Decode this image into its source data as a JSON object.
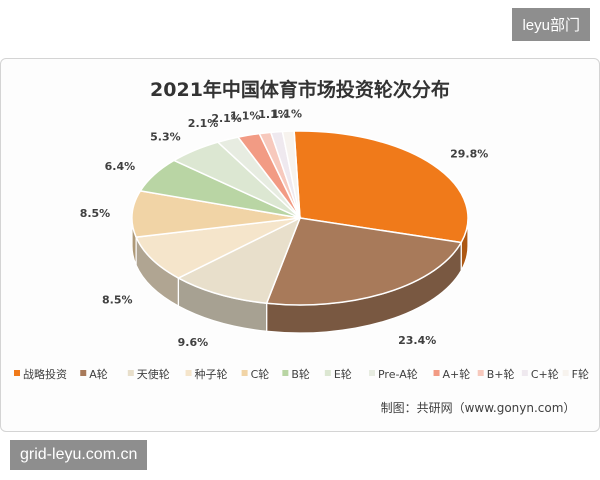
{
  "badge": "leyu部门",
  "watermark": "grid-leyu.com.cn",
  "source": "制图：共研网（www.gonyn.com）",
  "chart_data": {
    "type": "pie",
    "title": "2021年中国体育市场投资轮次分布",
    "slices": [
      {
        "name": "战略投资",
        "value": 29.8,
        "label": "29.8%",
        "color": "#F07A1A"
      },
      {
        "name": "A轮",
        "value": 23.4,
        "label": "23.4%",
        "color": "#A87A5A"
      },
      {
        "name": "天使轮",
        "value": 9.6,
        "label": "9.6%",
        "color": "#E8DFCB"
      },
      {
        "name": "种子轮",
        "value": 8.5,
        "label": "8.5%",
        "color": "#F5E5CB"
      },
      {
        "name": "C轮",
        "value": 8.5,
        "label": "8.5%",
        "color": "#F1D4A6"
      },
      {
        "name": "B轮",
        "value": 6.4,
        "label": "6.4%",
        "color": "#B9D5A4"
      },
      {
        "name": "E轮",
        "value": 5.3,
        "label": "5.3%",
        "color": "#DCE7D2"
      },
      {
        "name": "Pre-A轮",
        "value": 2.1,
        "label": "2.1%",
        "color": "#E7ECE1"
      },
      {
        "name": "A+轮",
        "value": 2.1,
        "label": "2.1%",
        "color": "#F29B84"
      },
      {
        "name": "B+轮",
        "value": 1.1,
        "label": "1.1%",
        "color": "#F7C9BD"
      },
      {
        "name": "C+轮",
        "value": 1.1,
        "label": "1.1%",
        "color": "#EFE9EF"
      },
      {
        "name": "F轮",
        "value": 1.1,
        "label": "1.1%",
        "color": "#F7F3EE"
      }
    ],
    "legend_position": "bottom"
  }
}
